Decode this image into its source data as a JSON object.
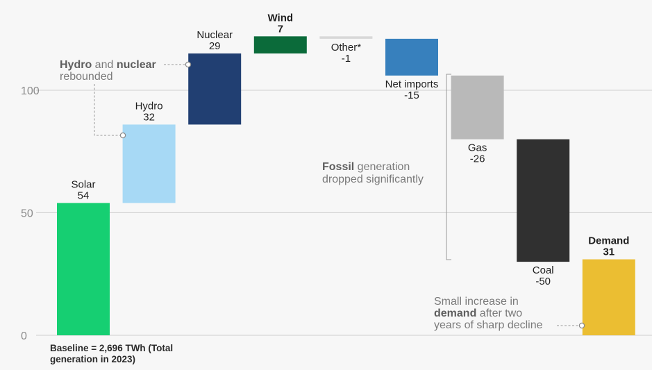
{
  "chart_data": {
    "type": "waterfall",
    "ylim": [
      0,
      130
    ],
    "yticks": [
      0,
      50,
      100
    ],
    "baseline_label_line1": "Baseline = 2,696 TWh (Total",
    "baseline_label_line2": "generation in 2023)",
    "steps": [
      {
        "name": "Solar",
        "value": 54,
        "value_label": "54",
        "color": "#16cf72"
      },
      {
        "name": "Hydro",
        "value": 32,
        "value_label": "32",
        "color": "#a7d9f5"
      },
      {
        "name": "Nuclear",
        "value": 29,
        "value_label": "29",
        "color": "#213f72"
      },
      {
        "name": "Wind",
        "value": 7,
        "value_label": "7",
        "color": "#0b6b3a"
      },
      {
        "name": "Other*",
        "value": -1,
        "value_label": "-1",
        "color": "#d8d8d8"
      },
      {
        "name": "Net imports",
        "value": -15,
        "value_label": "-15",
        "color": "#3780bd"
      },
      {
        "name": "Gas",
        "value": -26,
        "value_label": "-26",
        "color": "#b9b9b9"
      },
      {
        "name": "Coal",
        "value": -50,
        "value_label": "-50",
        "color": "#303030"
      },
      {
        "name": "Demand",
        "value": 31,
        "value_label": "31",
        "color": "#ebbe32",
        "is_total": true
      }
    ],
    "annotations": {
      "hydro_nuclear_b1": "Hydro",
      "hydro_nuclear_t1": " and ",
      "hydro_nuclear_b2": "nuclear",
      "hydro_nuclear_t2": "rebounded",
      "fossil_b": "Fossil",
      "fossil_t1": " generation",
      "fossil_t2": "dropped significantly",
      "demand_t1": "Small increase in",
      "demand_b": "demand",
      "demand_t2": " after two",
      "demand_t3": "years of sharp decline"
    }
  }
}
